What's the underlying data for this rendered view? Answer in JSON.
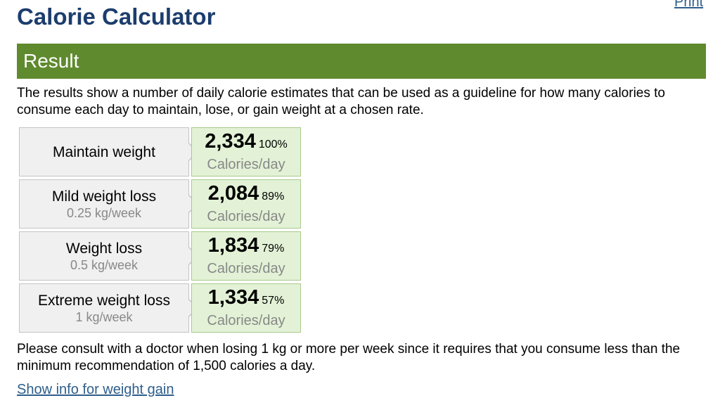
{
  "header": {
    "title": "Calorie Calculator",
    "print_label": "Print"
  },
  "result": {
    "heading": "Result",
    "intro": "The results show a number of daily calorie estimates that can be used as a guideline for how many calories to consume each day to maintain, lose, or gain weight at a chosen rate."
  },
  "rows": [
    {
      "label": "Maintain weight",
      "rate": "",
      "calories": "2,334",
      "percent": "100%",
      "unit": "Calories/day"
    },
    {
      "label": "Mild weight loss",
      "rate": "0.25 kg/week",
      "calories": "2,084",
      "percent": "89%",
      "unit": "Calories/day"
    },
    {
      "label": "Weight loss",
      "rate": "0.5 kg/week",
      "calories": "1,834",
      "percent": "79%",
      "unit": "Calories/day"
    },
    {
      "label": "Extreme weight loss",
      "rate": "1 kg/week",
      "calories": "1,334",
      "percent": "57%",
      "unit": "Calories/day"
    }
  ],
  "warning": "Please consult with a doctor when losing 1 kg or more per week since it requires that you consume less than the minimum recommendation of 1,500 calories a day.",
  "links": {
    "weight_gain": "Show info for weight gain"
  },
  "colors": {
    "title": "#1c3d6d",
    "result_bar": "#5f8a2e",
    "value_cell": "#e3f2d6",
    "label_cell": "#f0f0f0",
    "link": "#2e5e8c"
  }
}
